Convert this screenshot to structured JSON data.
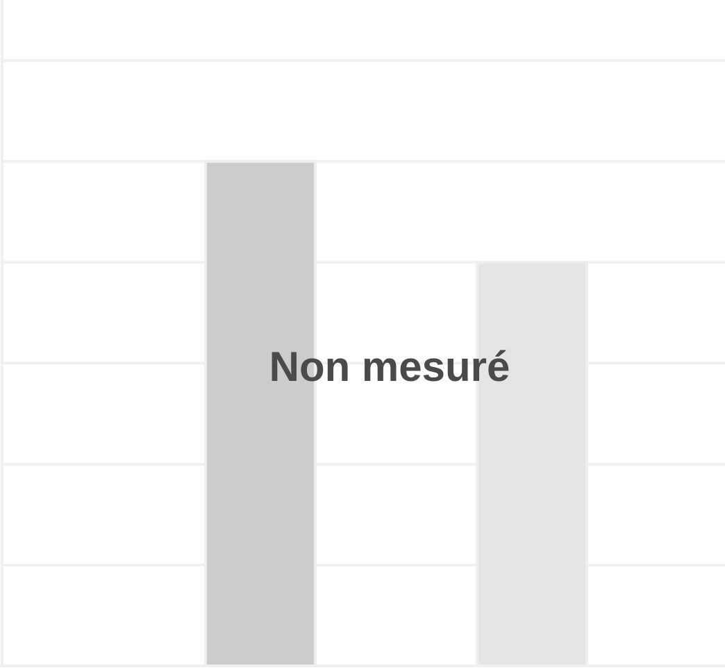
{
  "chart_data": {
    "type": "bar",
    "categories": [
      "",
      ""
    ],
    "series": [
      {
        "values": [
          5.0,
          4.0
        ]
      }
    ],
    "bar_colors": [
      "#cccccc",
      "#e5e5e5"
    ],
    "ylim": [
      0,
      6.6
    ],
    "grid": true,
    "overlay_text": "Non mesuré"
  },
  "colors": {
    "grid": "#f0f0f0",
    "bar_stroke": "#eeeeee",
    "overlay_text": "#4a4a4a",
    "background": "#ffffff"
  }
}
